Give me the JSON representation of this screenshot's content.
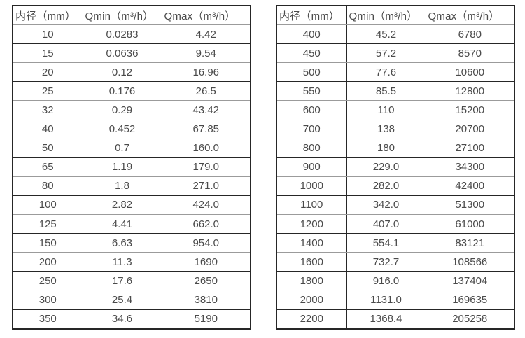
{
  "colors": {
    "page_bg": "#ffffff",
    "text": "#4a4a4a",
    "border_dark": "#262626",
    "border_light": "#9b9b9b"
  },
  "tables": [
    {
      "name": "flow-range-table-small-diameters",
      "headers": [
        "内径（mm）",
        "Qmin（m³/h）",
        "Qmax（m³/h）"
      ],
      "rows": [
        [
          "10",
          "0.0283",
          "4.42"
        ],
        [
          "15",
          "0.0636",
          "9.54"
        ],
        [
          "20",
          "0.12",
          "16.96"
        ],
        [
          "25",
          "0.176",
          "26.5"
        ],
        [
          "32",
          "0.29",
          "43.42"
        ],
        [
          "40",
          "0.452",
          "67.85"
        ],
        [
          "50",
          "0.7",
          "160.0"
        ],
        [
          "65",
          "1.19",
          "179.0"
        ],
        [
          "80",
          "1.8",
          "271.0"
        ],
        [
          "100",
          "2.82",
          "424.0"
        ],
        [
          "125",
          "4.41",
          "662.0"
        ],
        [
          "150",
          "6.63",
          "954.0"
        ],
        [
          "200",
          "11.3",
          "1690"
        ],
        [
          "250",
          "17.6",
          "2650"
        ],
        [
          "300",
          "25.4",
          "3810"
        ],
        [
          "350",
          "34.6",
          "5190"
        ]
      ]
    },
    {
      "name": "flow-range-table-large-diameters",
      "headers": [
        "内径（mm）",
        "Qmin（m³/h）",
        "Qmax（m³/h）"
      ],
      "rows": [
        [
          "400",
          "45.2",
          "6780"
        ],
        [
          "450",
          "57.2",
          "8570"
        ],
        [
          "500",
          "77.6",
          "10600"
        ],
        [
          "550",
          "85.5",
          "12800"
        ],
        [
          "600",
          "110",
          "15200"
        ],
        [
          "700",
          "138",
          "20700"
        ],
        [
          "800",
          "180",
          "27100"
        ],
        [
          "900",
          "229.0",
          "34300"
        ],
        [
          "1000",
          "282.0",
          "42400"
        ],
        [
          "1100",
          "342.0",
          "51300"
        ],
        [
          "1200",
          "407.0",
          "61000"
        ],
        [
          "1400",
          "554.1",
          "83121"
        ],
        [
          "1600",
          "732.7",
          "108566"
        ],
        [
          "1800",
          "916.0",
          "137404"
        ],
        [
          "2000",
          "1131.0",
          "169635"
        ],
        [
          "2200",
          "1368.4",
          "205258"
        ]
      ]
    }
  ]
}
